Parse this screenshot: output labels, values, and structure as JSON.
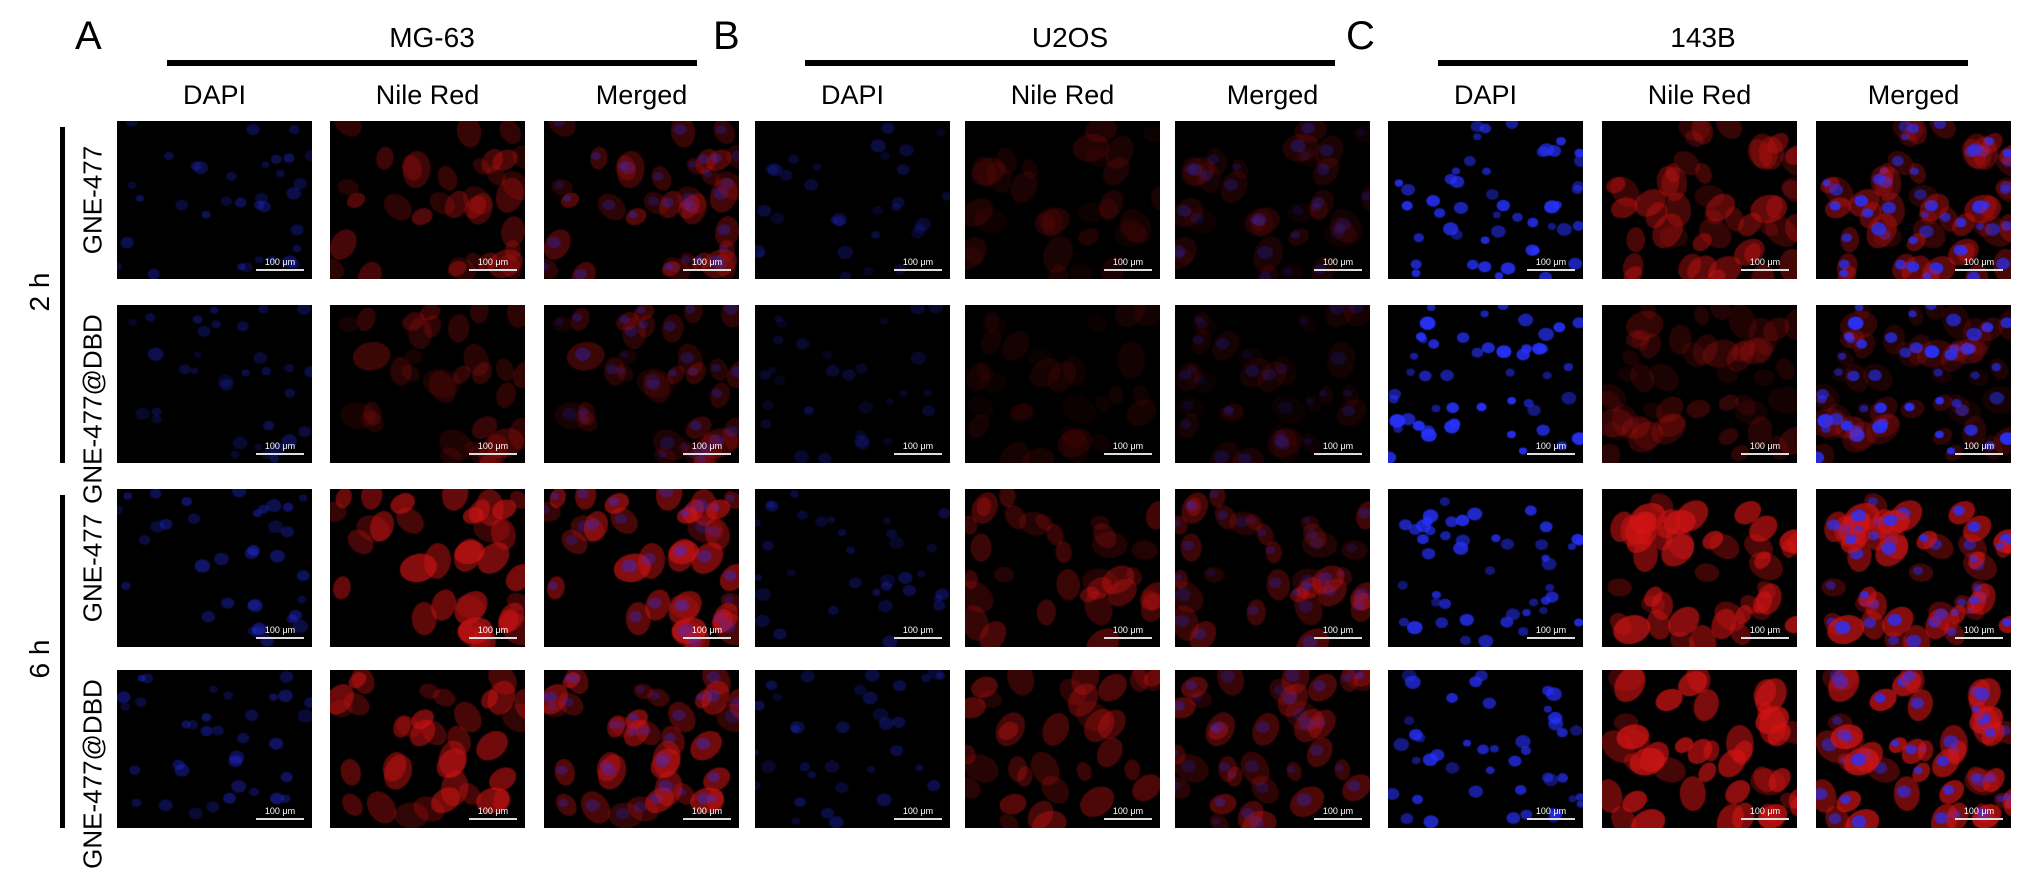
{
  "panels": [
    {
      "letter": "A",
      "cell_line": "MG-63"
    },
    {
      "letter": "B",
      "cell_line": "U2OS"
    },
    {
      "letter": "C",
      "cell_line": "143B"
    }
  ],
  "channels": [
    "DAPI",
    "Nile Red",
    "Merged"
  ],
  "time_groups": [
    {
      "label": "2 h",
      "rows": [
        "GNE-477",
        "GNE-477@DBD"
      ]
    },
    {
      "label": "6 h",
      "rows": [
        "GNE-477",
        "GNE-477@DBD"
      ]
    }
  ],
  "scale_bar": "100 μm",
  "colors": {
    "nucleus": "#1f2cff",
    "lipid": "#d01010",
    "background": "#000000"
  },
  "intensity": {
    "MG-63": [
      [
        0.35,
        0.5
      ],
      [
        0.3,
        0.35
      ],
      [
        0.4,
        0.8
      ],
      [
        0.4,
        0.75
      ]
    ],
    "U2OS": [
      [
        0.25,
        0.2
      ],
      [
        0.2,
        0.15
      ],
      [
        0.3,
        0.5
      ],
      [
        0.3,
        0.5
      ]
    ],
    "143B": [
      [
        0.9,
        0.6
      ],
      [
        0.95,
        0.3
      ],
      [
        0.85,
        0.9
      ],
      [
        0.8,
        0.95
      ]
    ]
  }
}
